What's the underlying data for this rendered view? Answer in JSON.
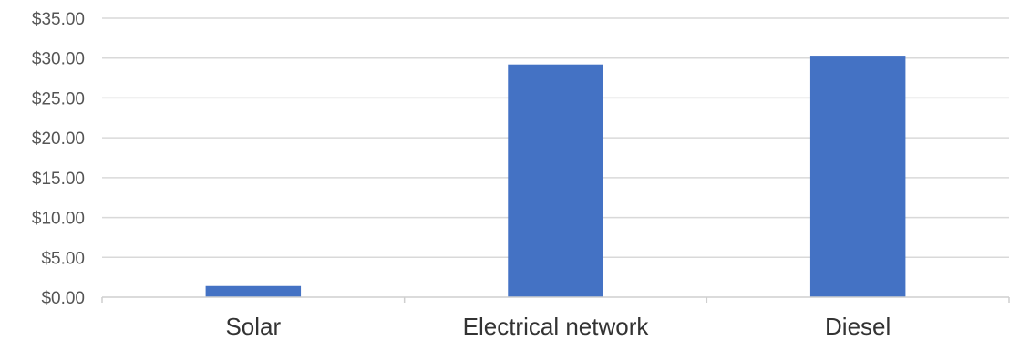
{
  "chart_data": {
    "type": "bar",
    "categories": [
      "Solar",
      "Electrical network",
      "Diesel"
    ],
    "values": [
      1.4,
      29.2,
      30.3
    ],
    "title": "",
    "xlabel": "",
    "ylabel": "",
    "ylim": [
      0,
      35
    ],
    "yticks": [
      0,
      5,
      10,
      15,
      20,
      25,
      30,
      35
    ],
    "ytick_labels": [
      "$0.00",
      "$5.00",
      "$10.00",
      "$15.00",
      "$20.00",
      "$25.00",
      "$30.00",
      "$35.00"
    ],
    "bar_color": "#4472C4",
    "grid": true,
    "legend": "none"
  }
}
